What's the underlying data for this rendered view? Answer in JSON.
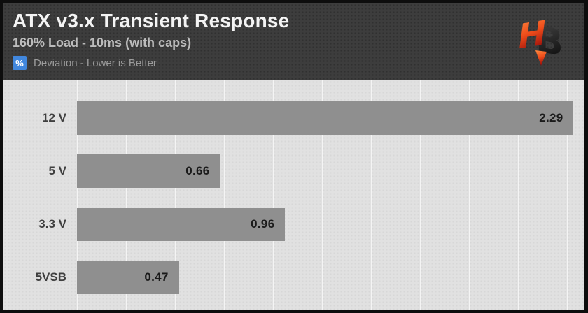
{
  "header": {
    "title": "ATX v3.x Transient Response",
    "subtitle": "160% Load - 10ms (with caps)",
    "badge": "%",
    "tagline": "Deviation - Lower is Better",
    "logo_letters": {
      "h": "H",
      "b": "B"
    }
  },
  "colors": {
    "accent_blue": "#4187dd",
    "bar_gray": "#8f8f8f",
    "header_bg": "#3d3d3d",
    "plot_bg": "#e1e1e1",
    "logo_orange": "#f04f1d",
    "logo_dark": "#2b2b2b"
  },
  "chart_data": {
    "type": "bar",
    "orientation": "horizontal",
    "title": "ATX v3.x Transient Response",
    "subtitle": "160% Load - 10ms (with caps)",
    "unit": "% Deviation",
    "note": "Lower is Better",
    "categories": [
      "12 V",
      "5 V",
      "3.3 V",
      "5VSB"
    ],
    "values": [
      2.29,
      0.66,
      0.96,
      0.47
    ],
    "value_labels": [
      "2.29",
      "0.66",
      "0.96",
      "0.47"
    ],
    "xlim": [
      0,
      2.34
    ],
    "grid": "vertical-only",
    "legend_position": "none"
  }
}
